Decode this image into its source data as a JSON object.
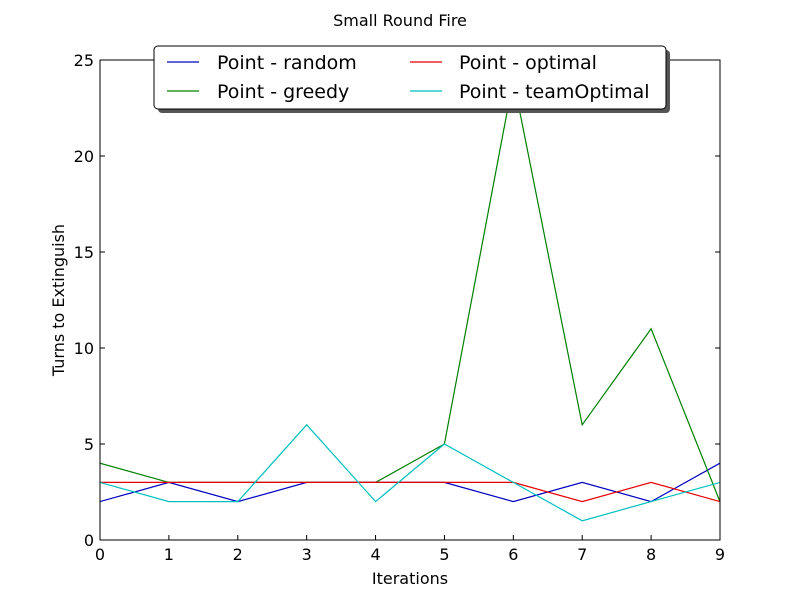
{
  "chart_data": {
    "type": "line",
    "title": "Small Round Fire",
    "xlabel": "Iterations",
    "ylabel": "Turns to Extinguish",
    "xlim": [
      0,
      9
    ],
    "ylim": [
      0,
      25
    ],
    "x": [
      0,
      1,
      2,
      3,
      4,
      5,
      6,
      7,
      8,
      9
    ],
    "xticks": [
      "0",
      "1",
      "2",
      "3",
      "4",
      "5",
      "6",
      "7",
      "8",
      "9"
    ],
    "yticks": [
      "0",
      "5",
      "10",
      "15",
      "20",
      "25"
    ],
    "yticks_values": [
      0,
      5,
      10,
      15,
      20,
      25
    ],
    "grid": false,
    "legend_position": "top-center",
    "series": [
      {
        "name": "Point - random",
        "color": "#0000bf",
        "values": [
          2,
          3,
          2,
          3,
          3,
          3,
          2,
          3,
          2,
          4
        ]
      },
      {
        "name": "Point - greedy",
        "color": "#008000",
        "values": [
          4,
          3,
          3,
          3,
          3,
          5,
          24,
          6,
          11,
          2
        ]
      },
      {
        "name": "Point - optimal",
        "color": "#e60000",
        "values": [
          3,
          3,
          3,
          3,
          3,
          3,
          3,
          2,
          3,
          2
        ]
      },
      {
        "name": "Point - teamOptimal",
        "color": "#00bfbf",
        "values": [
          3,
          2,
          2,
          6,
          2,
          5,
          3,
          1,
          2,
          3
        ]
      }
    ]
  }
}
